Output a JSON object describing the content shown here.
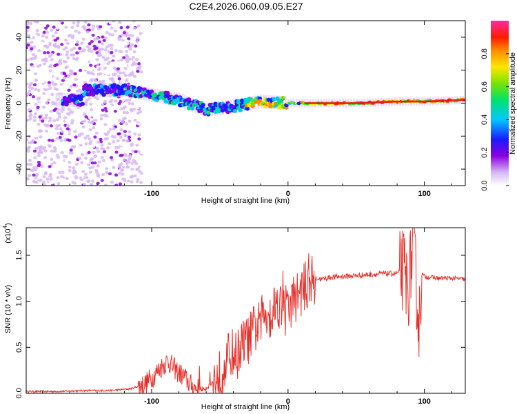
{
  "chart_data": [
    {
      "type": "heatmap",
      "title": "C2E4.2026.060.09.05.E27",
      "xlabel": "Height of straight line (km)",
      "ylabel": "Frequency (Hz)",
      "xlim": [
        -192,
        130
      ],
      "ylim": [
        -50,
        50
      ],
      "xticks": [
        -100,
        0,
        100
      ],
      "yticks": [
        -40,
        -20,
        0,
        20,
        40
      ],
      "colorbar": {
        "label": "Normalized spectral amplitude",
        "range": [
          0,
          1
        ],
        "ticks": [
          "0.0",
          "0.2",
          "0.4",
          "0.6",
          "0.8"
        ]
      },
      "description_points": {
        "center_frequency_track_km": [
          -150,
          -120,
          -100,
          -80,
          -60,
          -40,
          -20,
          0,
          20,
          50,
          80,
          100,
          130
        ],
        "center_frequency_track_hz": [
          8,
          8,
          5,
          2,
          -4,
          -2,
          1,
          0,
          0,
          0,
          1,
          1,
          2
        ]
      }
    },
    {
      "type": "line",
      "xlabel": "Height of straight line (km)",
      "ylabel": "SNR (10 * v/v)",
      "scale_label": "(x10",
      "scale_exponent": "4",
      "xlim": [
        -192,
        130
      ],
      "ylim": [
        0,
        1.8
      ],
      "xticks": [
        -100,
        0,
        100
      ],
      "yticks": [
        "0.0",
        "0.5",
        "1.0",
        "1.5"
      ],
      "series": [
        {
          "name": "SNR",
          "color": "#e8302a",
          "x": [
            -192,
            -170,
            -150,
            -130,
            -115,
            -105,
            -98,
            -92,
            -88,
            -84,
            -80,
            -76,
            -72,
            -68,
            -64,
            -60,
            -55,
            -50,
            -45,
            -42,
            -38,
            -35,
            -32,
            -28,
            -25,
            -22,
            -19,
            -16,
            -13,
            -10,
            -8,
            -5,
            -2,
            0,
            3,
            6,
            9,
            12,
            16,
            20,
            25,
            30,
            40,
            50,
            60,
            70,
            78,
            82,
            85,
            88,
            90,
            92,
            94,
            96,
            98,
            100,
            105,
            110,
            120,
            130
          ],
          "y": [
            0.02,
            0.02,
            0.03,
            0.03,
            0.05,
            0.1,
            0.2,
            0.3,
            0.35,
            0.28,
            0.22,
            0.18,
            0.1,
            0.06,
            0.04,
            0.06,
            0.12,
            0.2,
            0.35,
            0.45,
            0.4,
            0.5,
            0.55,
            0.6,
            0.7,
            0.72,
            0.8,
            0.9,
            0.85,
            0.95,
            1.0,
            0.95,
            0.85,
            0.9,
            1.0,
            1.05,
            1.1,
            1.15,
            1.2,
            1.25,
            1.24,
            1.26,
            1.27,
            1.28,
            1.29,
            1.3,
            1.3,
            1.32,
            1.35,
            1.1,
            1.4,
            1.6,
            1.2,
            0.7,
            1.3,
            1.27,
            1.26,
            1.25,
            1.25,
            1.24
          ]
        }
      ]
    }
  ]
}
